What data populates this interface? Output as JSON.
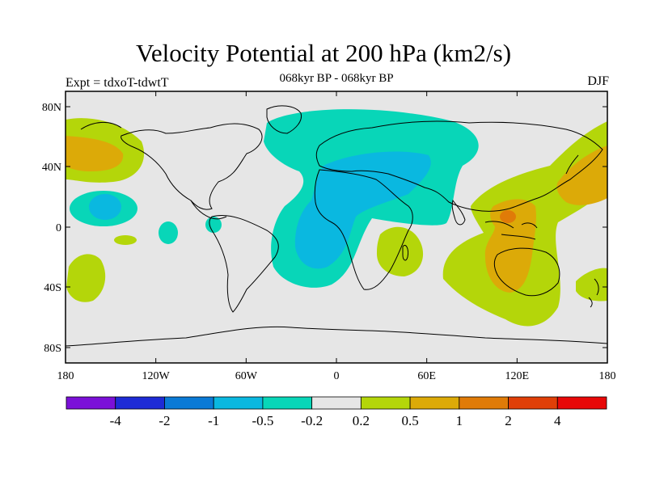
{
  "header": {
    "title": "Velocity Potential at 200 hPa (km2/s)",
    "subtitle": "068kyr BP - 068kyr BP",
    "left_label": "Expt = tdxoT-tdwtT",
    "right_label": "DJF"
  },
  "map": {
    "background_color": "#e6e6e6",
    "lat_ticks": [
      "80N",
      "40N",
      "0",
      "40S",
      "80S"
    ],
    "lon_ticks": [
      "180",
      "120W",
      "60W",
      "0",
      "60E",
      "120E",
      "180"
    ]
  },
  "colorbar": {
    "colors": [
      "#7b10d8",
      "#1e2bd6",
      "#0a7ad6",
      "#0ab8e0",
      "#08d6b8",
      "#e6e6e6",
      "#b4d60a",
      "#dcaa08",
      "#e07b08",
      "#e03f08",
      "#e80808"
    ],
    "labels": [
      "-4",
      "-2",
      "-1",
      "-0.5",
      "-0.2",
      "0.2",
      "0.5",
      "1",
      "2",
      "4"
    ]
  }
}
